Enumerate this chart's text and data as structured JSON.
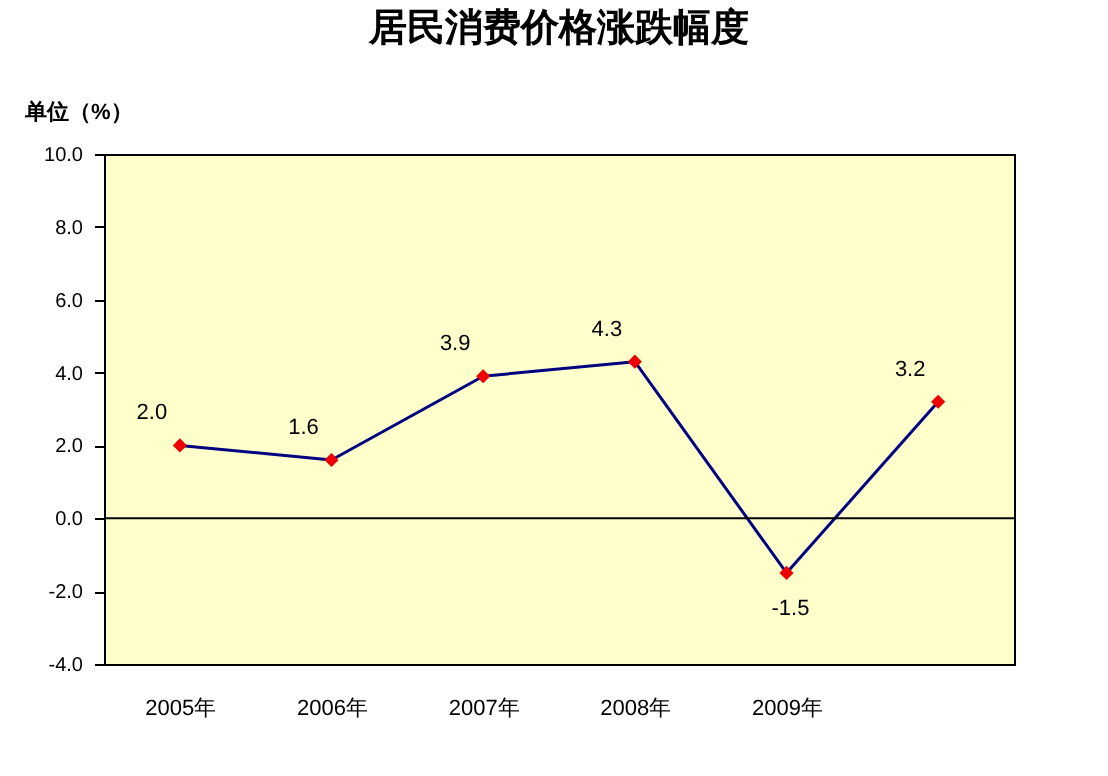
{
  "chart_data": {
    "type": "line",
    "title": "居民消费价格涨跌幅度",
    "ylabel": "单位（%）",
    "categories": [
      "2005年",
      "2006年",
      "2007年",
      "2008年",
      "2009年",
      null
    ],
    "series": [
      {
        "color": "#000080",
        "values": [
          2.0,
          1.6,
          3.9,
          4.3,
          -1.5,
          3.2
        ],
        "value_labels": [
          "2.0",
          "1.6",
          "3.9",
          "4.3",
          "-1.5",
          "3.2"
        ]
      }
    ],
    "marker": "diamond",
    "data_labels": true,
    "ylim": [
      -4,
      10
    ],
    "yticks": [
      {
        "value": -4,
        "label": "-4.0"
      },
      {
        "value": -2,
        "label": "-2.0"
      },
      {
        "value": 0,
        "label": "0.0"
      },
      {
        "value": 2,
        "label": "2.0"
      },
      {
        "value": 4,
        "label": "4.0"
      },
      {
        "value": 6,
        "label": "6.0"
      },
      {
        "value": 8,
        "label": "8.0"
      },
      {
        "value": 10,
        "label": "10.0"
      }
    ],
    "ref_lines": [
      {
        "axis": "y",
        "value": 0,
        "color": "#000000"
      }
    ]
  }
}
